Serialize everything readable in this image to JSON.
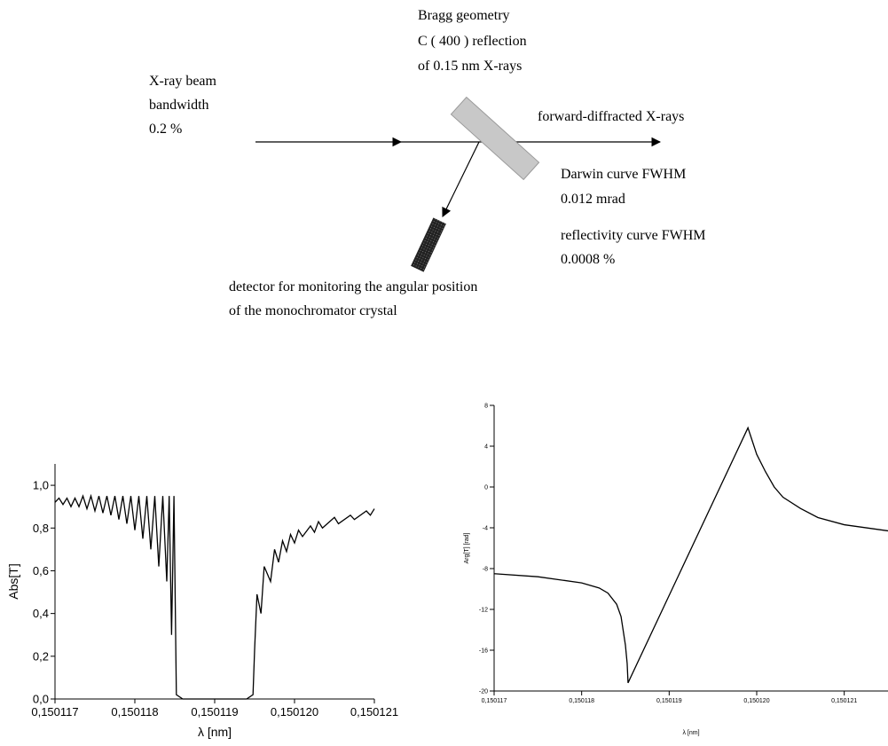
{
  "diagram": {
    "crystal_label": [
      "Bragg geometry",
      "C ( 400 ) reflection",
      "of 0.15 nm X-rays"
    ],
    "beam_label": [
      "X-ray beam",
      "bandwidth",
      "0.2 %"
    ],
    "forward_label": "forward-diffracted X-rays",
    "darwin_label": [
      "Darwin curve FWHM",
      "0.012 mrad"
    ],
    "reflectivity_label": [
      "reflectivity curve FWHM",
      "0.0008 %"
    ],
    "detector_label": [
      "detector for monitoring the angular position",
      "of the monochromator crystal"
    ]
  },
  "chart_data": [
    {
      "type": "line",
      "xlabel": "λ [nm]",
      "ylabel": "Abs[T]",
      "color": "#000000",
      "x": [
        0.150117,
        0.15011705,
        0.1501171,
        0.15011715,
        0.1501172,
        0.15011725,
        0.1501173,
        0.15011735,
        0.1501174,
        0.15011745,
        0.1501175,
        0.15011755,
        0.1501176,
        0.15011765,
        0.1501177,
        0.15011775,
        0.1501178,
        0.15011785,
        0.1501179,
        0.15011795,
        0.150118,
        0.15011805,
        0.1501181,
        0.15011815,
        0.1501182,
        0.15011825,
        0.1501183,
        0.15011835,
        0.1501184,
        0.15011843,
        0.15011846,
        0.15011849,
        0.15011852,
        0.1501186,
        0.1501194,
        0.15011948,
        0.1501195,
        0.15011953,
        0.15011958,
        0.15011962,
        0.1501197,
        0.15011975,
        0.1501198,
        0.15011985,
        0.1501199,
        0.15011995,
        0.15012,
        0.15012005,
        0.1501201,
        0.1501202,
        0.15012025,
        0.1501203,
        0.15012035,
        0.1501205,
        0.15012055,
        0.1501207,
        0.15012075,
        0.1501209,
        0.15012095,
        0.150121
      ],
      "values": [
        0.92,
        0.94,
        0.91,
        0.94,
        0.9,
        0.94,
        0.9,
        0.95,
        0.89,
        0.95,
        0.88,
        0.95,
        0.87,
        0.95,
        0.86,
        0.95,
        0.84,
        0.95,
        0.82,
        0.95,
        0.79,
        0.95,
        0.75,
        0.95,
        0.7,
        0.95,
        0.62,
        0.95,
        0.55,
        0.95,
        0.3,
        0.95,
        0.02,
        0,
        0,
        0.02,
        0.23,
        0.49,
        0.4,
        0.62,
        0.55,
        0.7,
        0.64,
        0.74,
        0.69,
        0.77,
        0.73,
        0.79,
        0.76,
        0.81,
        0.78,
        0.83,
        0.8,
        0.85,
        0.82,
        0.86,
        0.84,
        0.88,
        0.86,
        0.89
      ],
      "xlim": [
        0.150117,
        0.150121
      ],
      "xticks": [
        {
          "value": 0.150117,
          "label": "0,150117"
        },
        {
          "value": 0.150118,
          "label": "0,150118"
        },
        {
          "value": 0.150119,
          "label": "0,150119"
        },
        {
          "value": 0.15012,
          "label": "0,150120"
        },
        {
          "value": 0.150121,
          "label": "0,150121"
        }
      ],
      "ylim": [
        0,
        1.1
      ],
      "yticks": [
        {
          "value": 0,
          "label": "0,0"
        },
        {
          "value": 0.2,
          "label": "0,2"
        },
        {
          "value": 0.4,
          "label": "0,4"
        },
        {
          "value": 0.6,
          "label": "0,6"
        },
        {
          "value": 0.8,
          "label": "0,8"
        },
        {
          "value": 1.0,
          "label": "1,0"
        }
      ]
    },
    {
      "type": "line",
      "xlabel": "λ [nm]",
      "ylabel": "Arg[T] [rad]",
      "color": "#000000",
      "x": [
        0.150117,
        0.1501175,
        0.150118,
        0.1501182,
        0.1501183,
        0.1501184,
        0.15011845,
        0.1501185,
        0.15011852,
        0.15011853,
        0.1501199,
        0.15011995,
        0.15012,
        0.1501201,
        0.1501202,
        0.1501203,
        0.1501205,
        0.1501207,
        0.150121,
        0.1501215
      ],
      "values": [
        -8.5,
        -8.8,
        -9.4,
        -9.9,
        -10.4,
        -11.5,
        -12.7,
        -15.5,
        -17.3,
        -19.2,
        5.8,
        4.5,
        3.2,
        1.5,
        0,
        -1.0,
        -2.1,
        -3.0,
        -3.7,
        -4.3
      ],
      "xlim": [
        0.150117,
        0.1501215
      ],
      "xticks": [
        {
          "value": 0.150117,
          "label": "0,150117"
        },
        {
          "value": 0.150118,
          "label": "0,150118"
        },
        {
          "value": 0.150119,
          "label": "0,150119"
        },
        {
          "value": 0.15012,
          "label": "0,150120"
        },
        {
          "value": 0.150121,
          "label": "0,150121"
        }
      ],
      "ylim": [
        -20,
        8
      ],
      "yticks": [
        8,
        4,
        0,
        -4,
        -8,
        -12,
        -16,
        -20
      ]
    }
  ]
}
